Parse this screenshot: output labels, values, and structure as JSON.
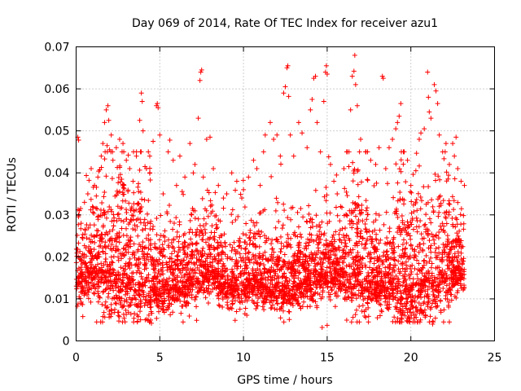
{
  "chart_data": {
    "type": "scatter",
    "title": "Day 069 of 2014, Rate Of TEC Index for receiver azu1",
    "xlabel": "GPS time / hours",
    "ylabel": "ROTI / TECUs",
    "xlim": [
      0,
      25
    ],
    "ylim": [
      0,
      0.07
    ],
    "xticks": [
      0,
      5,
      10,
      15,
      20,
      25
    ],
    "yticks": [
      0,
      0.01,
      0.02,
      0.03,
      0.04,
      0.05,
      0.06,
      0.07
    ],
    "xtick_labels": [
      "0",
      "5",
      "10",
      "15",
      "20",
      "25"
    ],
    "ytick_labels": [
      "0",
      "0.01",
      "0.02",
      "0.03",
      "0.04",
      "0.05",
      "0.06",
      "0.07"
    ],
    "grid": true,
    "marker": "+",
    "color": "#ff0000",
    "series": [
      {
        "name": "ROTI",
        "points": [
          [
            0.1,
            0.0485
          ],
          [
            0.15,
            0.0478
          ],
          [
            0.2,
            0.031
          ],
          [
            0.3,
            0.028
          ],
          [
            0.5,
            0.033
          ],
          [
            0.7,
            0.035
          ],
          [
            0.9,
            0.041
          ],
          [
            1.1,
            0.037
          ],
          [
            1.3,
            0.039
          ],
          [
            1.5,
            0.044
          ],
          [
            1.6,
            0.047
          ],
          [
            1.7,
            0.052
          ],
          [
            1.8,
            0.055
          ],
          [
            1.85,
            0.0465
          ],
          [
            1.9,
            0.056
          ],
          [
            1.95,
            0.0525
          ],
          [
            2.0,
            0.0455
          ],
          [
            2.1,
            0.049
          ],
          [
            2.2,
            0.043
          ],
          [
            2.4,
            0.046
          ],
          [
            2.6,
            0.048
          ],
          [
            2.8,
            0.047
          ],
          [
            3.0,
            0.043
          ],
          [
            3.2,
            0.041
          ],
          [
            3.4,
            0.038
          ],
          [
            3.6,
            0.044
          ],
          [
            3.8,
            0.0525
          ],
          [
            3.9,
            0.059
          ],
          [
            3.95,
            0.057
          ],
          [
            4.0,
            0.05
          ],
          [
            4.2,
            0.041
          ],
          [
            4.4,
            0.044
          ],
          [
            4.6,
            0.0475
          ],
          [
            4.8,
            0.056
          ],
          [
            4.85,
            0.0565
          ],
          [
            4.9,
            0.0555
          ],
          [
            5.0,
            0.049
          ],
          [
            5.2,
            0.035
          ],
          [
            5.5,
            0.045
          ],
          [
            5.6,
            0.0478
          ],
          [
            5.8,
            0.043
          ],
          [
            6.0,
            0.037
          ],
          [
            6.2,
            0.044
          ],
          [
            6.5,
            0.039
          ],
          [
            6.8,
            0.047
          ],
          [
            7.0,
            0.04
          ],
          [
            7.1,
            0.042
          ],
          [
            7.3,
            0.053
          ],
          [
            7.4,
            0.062
          ],
          [
            7.45,
            0.064
          ],
          [
            7.5,
            0.0645
          ],
          [
            7.6,
            0.039
          ],
          [
            7.8,
            0.048
          ],
          [
            8.0,
            0.0485
          ],
          [
            8.2,
            0.041
          ],
          [
            8.5,
            0.037
          ],
          [
            8.8,
            0.034
          ],
          [
            9.0,
            0.035
          ],
          [
            9.3,
            0.04
          ],
          [
            9.6,
            0.038
          ],
          [
            9.9,
            0.034
          ],
          [
            10.0,
            0.036
          ],
          [
            10.3,
            0.039
          ],
          [
            10.6,
            0.043
          ],
          [
            10.8,
            0.041
          ],
          [
            11.0,
            0.037
          ],
          [
            11.2,
            0.045
          ],
          [
            11.3,
            0.049
          ],
          [
            11.6,
            0.052
          ],
          [
            11.8,
            0.048
          ],
          [
            12.0,
            0.049
          ],
          [
            12.2,
            0.044
          ],
          [
            12.4,
            0.059
          ],
          [
            12.5,
            0.0605
          ],
          [
            12.6,
            0.065
          ],
          [
            12.65,
            0.0655
          ],
          [
            12.7,
            0.0582
          ],
          [
            12.8,
            0.049
          ],
          [
            13.0,
            0.044
          ],
          [
            13.3,
            0.052
          ],
          [
            13.5,
            0.0495
          ],
          [
            13.8,
            0.046
          ],
          [
            14.0,
            0.055
          ],
          [
            14.1,
            0.0575
          ],
          [
            14.2,
            0.0625
          ],
          [
            14.3,
            0.063
          ],
          [
            14.4,
            0.052
          ],
          [
            14.6,
            0.045
          ],
          [
            14.8,
            0.057
          ],
          [
            14.9,
            0.064
          ],
          [
            14.95,
            0.0655
          ],
          [
            15.0,
            0.0635
          ],
          [
            15.2,
            0.042
          ],
          [
            15.4,
            0.038
          ],
          [
            15.6,
            0.035
          ],
          [
            15.8,
            0.032
          ],
          [
            16.0,
            0.041
          ],
          [
            16.2,
            0.045
          ],
          [
            16.4,
            0.055
          ],
          [
            16.5,
            0.063
          ],
          [
            16.6,
            0.0642
          ],
          [
            16.65,
            0.068
          ],
          [
            16.7,
            0.061
          ],
          [
            16.8,
            0.056
          ],
          [
            17.0,
            0.048
          ],
          [
            17.3,
            0.045
          ],
          [
            17.6,
            0.043
          ],
          [
            17.9,
            0.042
          ],
          [
            18.1,
            0.046
          ],
          [
            18.3,
            0.063
          ],
          [
            18.35,
            0.0625
          ],
          [
            18.5,
            0.041
          ],
          [
            18.7,
            0.046
          ],
          [
            18.9,
            0.048
          ],
          [
            19.1,
            0.0505
          ],
          [
            19.2,
            0.052
          ],
          [
            19.3,
            0.0535
          ],
          [
            19.4,
            0.0565
          ],
          [
            19.6,
            0.045
          ],
          [
            19.8,
            0.043
          ],
          [
            20.0,
            0.037
          ],
          [
            20.3,
            0.0405
          ],
          [
            20.5,
            0.048
          ],
          [
            20.6,
            0.0495
          ],
          [
            20.8,
            0.0505
          ],
          [
            21.0,
            0.064
          ],
          [
            21.05,
            0.058
          ],
          [
            21.1,
            0.0545
          ],
          [
            21.2,
            0.053
          ],
          [
            21.4,
            0.061
          ],
          [
            21.5,
            0.0595
          ],
          [
            21.6,
            0.0565
          ],
          [
            21.7,
            0.049
          ],
          [
            21.9,
            0.045
          ],
          [
            22.1,
            0.047
          ],
          [
            22.3,
            0.042
          ],
          [
            22.5,
            0.047
          ],
          [
            22.6,
            0.044
          ],
          [
            22.7,
            0.0485
          ],
          [
            22.8,
            0.041
          ],
          [
            23.0,
            0.038
          ],
          [
            23.2,
            0.037
          ],
          [
            0.4,
            0.0058
          ],
          [
            4.5,
            0.0042
          ],
          [
            7.2,
            0.0049
          ],
          [
            14.7,
            0.0032
          ],
          [
            15.0,
            0.0037
          ],
          [
            21.3,
            0.004
          ],
          [
            1.6,
            0.0058
          ],
          [
            10.2,
            0.0061
          ],
          [
            18.0,
            0.0055
          ],
          [
            9.5,
            0.0049
          ]
        ]
      }
    ]
  }
}
